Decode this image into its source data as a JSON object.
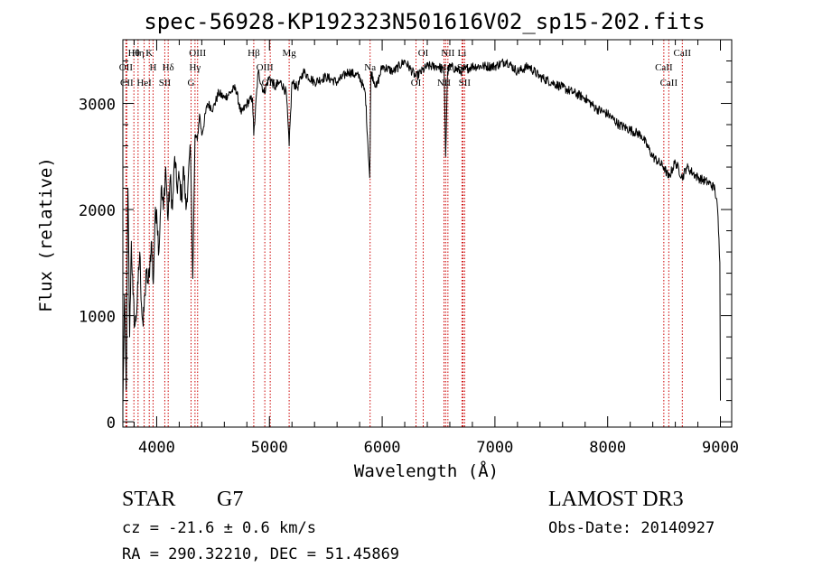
{
  "chart_data": {
    "type": "line",
    "title": "spec-56928-KP192323N501616V02_sp15-202.fits",
    "xlabel": "Wavelength (Å)",
    "ylabel": "Flux (relative)",
    "xlim": [
      3700,
      9100
    ],
    "ylim": [
      -50,
      3600
    ],
    "xticks": [
      4000,
      5000,
      6000,
      7000,
      8000,
      9000
    ],
    "xtick_labels": [
      "4000",
      "5000",
      "6000",
      "7000",
      "8000",
      "9000"
    ],
    "yticks": [
      0,
      1000,
      2000,
      3000
    ],
    "ytick_labels": [
      "0",
      "1000",
      "2000",
      "3000"
    ],
    "grid": false,
    "series": [
      {
        "name": "flux",
        "x": [
          3700,
          3715,
          3730,
          3745,
          3760,
          3775,
          3790,
          3805,
          3820,
          3835,
          3850,
          3865,
          3880,
          3895,
          3910,
          3925,
          3940,
          3955,
          3970,
          3985,
          4000,
          4020,
          4040,
          4060,
          4080,
          4100,
          4120,
          4140,
          4160,
          4180,
          4200,
          4220,
          4240,
          4260,
          4280,
          4300,
          4320,
          4340,
          4360,
          4380,
          4400,
          4450,
          4500,
          4550,
          4600,
          4650,
          4700,
          4750,
          4800,
          4850,
          4861,
          4900,
          4950,
          5000,
          5050,
          5100,
          5150,
          5175,
          5200,
          5250,
          5300,
          5400,
          5500,
          5600,
          5700,
          5800,
          5850,
          5890,
          5900,
          5950,
          6000,
          6100,
          6200,
          6300,
          6400,
          6500,
          6550,
          6563,
          6580,
          6600,
          6700,
          6800,
          6900,
          7000,
          7100,
          7200,
          7300,
          7400,
          7500,
          7600,
          7700,
          7800,
          7900,
          8000,
          8100,
          8200,
          8300,
          8400,
          8498,
          8542,
          8600,
          8662,
          8700,
          8800,
          8900,
          8950,
          8975,
          8995,
          9000
        ],
        "values": [
          150,
          1200,
          300,
          2200,
          800,
          1700,
          1200,
          900,
          1000,
          1300,
          1600,
          1100,
          900,
          1200,
          1400,
          1300,
          1500,
          1700,
          1300,
          1900,
          2000,
          1600,
          2200,
          2000,
          2400,
          1900,
          2300,
          2000,
          2500,
          2200,
          2300,
          2100,
          2400,
          2000,
          2300,
          2550,
          1350,
          2700,
          2650,
          2900,
          2700,
          3000,
          2950,
          3100,
          3050,
          3100,
          3150,
          2900,
          3000,
          3050,
          2700,
          3300,
          3100,
          3250,
          3150,
          3200,
          3100,
          2600,
          3200,
          3150,
          3300,
          3200,
          3250,
          3200,
          3300,
          3250,
          3100,
          2300,
          3300,
          3150,
          3350,
          3300,
          3400,
          3250,
          3350,
          3350,
          3300,
          2500,
          3300,
          3350,
          3300,
          3350,
          3350,
          3350,
          3400,
          3300,
          3350,
          3250,
          3200,
          3150,
          3100,
          3050,
          2950,
          2900,
          2800,
          2750,
          2700,
          2500,
          2400,
          2300,
          2450,
          2300,
          2400,
          2300,
          2250,
          2200,
          2000,
          1500,
          200
        ]
      }
    ],
    "lines": [
      {
        "name": "Hθ",
        "wavelength": 3798
      },
      {
        "name": "OII",
        "wavelength": 3727
      },
      {
        "name": "CII",
        "wavelength": 3735
      },
      {
        "name": "K",
        "wavelength": 3934
      },
      {
        "name": "H",
        "wavelength": 3968
      },
      {
        "name": "HeI",
        "wavelength": 3889
      },
      {
        "name": "Hη",
        "wavelength": 3835
      },
      {
        "name": "Hδ",
        "wavelength": 4102
      },
      {
        "name": "SII",
        "wavelength": 4072
      },
      {
        "name": "OIII",
        "wavelength": 4363
      },
      {
        "name": "Hγ",
        "wavelength": 4340
      },
      {
        "name": "G",
        "wavelength": 4305
      },
      {
        "name": "Hβ",
        "wavelength": 4861
      },
      {
        "name": "OIII",
        "wavelength": 4959
      },
      {
        "name": "OIII",
        "wavelength": 5007
      },
      {
        "name": "Mg",
        "wavelength": 5175
      },
      {
        "name": "Na",
        "wavelength": 5893
      },
      {
        "name": "OI",
        "wavelength": 6300
      },
      {
        "name": "OI",
        "wavelength": 6364
      },
      {
        "name": "Hα",
        "wavelength": 6563
      },
      {
        "name": "NII",
        "wavelength": 6548
      },
      {
        "name": "NII",
        "wavelength": 6583
      },
      {
        "name": "SII",
        "wavelength": 6717
      },
      {
        "name": "SII",
        "wavelength": 6731
      },
      {
        "name": "Li",
        "wavelength": 6708
      },
      {
        "name": "CaII",
        "wavelength": 8498
      },
      {
        "name": "CaII",
        "wavelength": 8542
      },
      {
        "name": "CaII",
        "wavelength": 8662
      }
    ]
  },
  "annotations": {
    "class_label": "STAR",
    "subclass_label": "G7",
    "survey_label": "LAMOST DR3",
    "redshift_text": "cz = -21.6 ± 0.6 km/s",
    "obsdate_text": "Obs-Date: 20140927",
    "coords_text": "RA = 290.32210, DEC =  51.45869"
  },
  "colors": {
    "spectrum": "#000000",
    "lines": "#cc0000",
    "axes": "#000000"
  }
}
